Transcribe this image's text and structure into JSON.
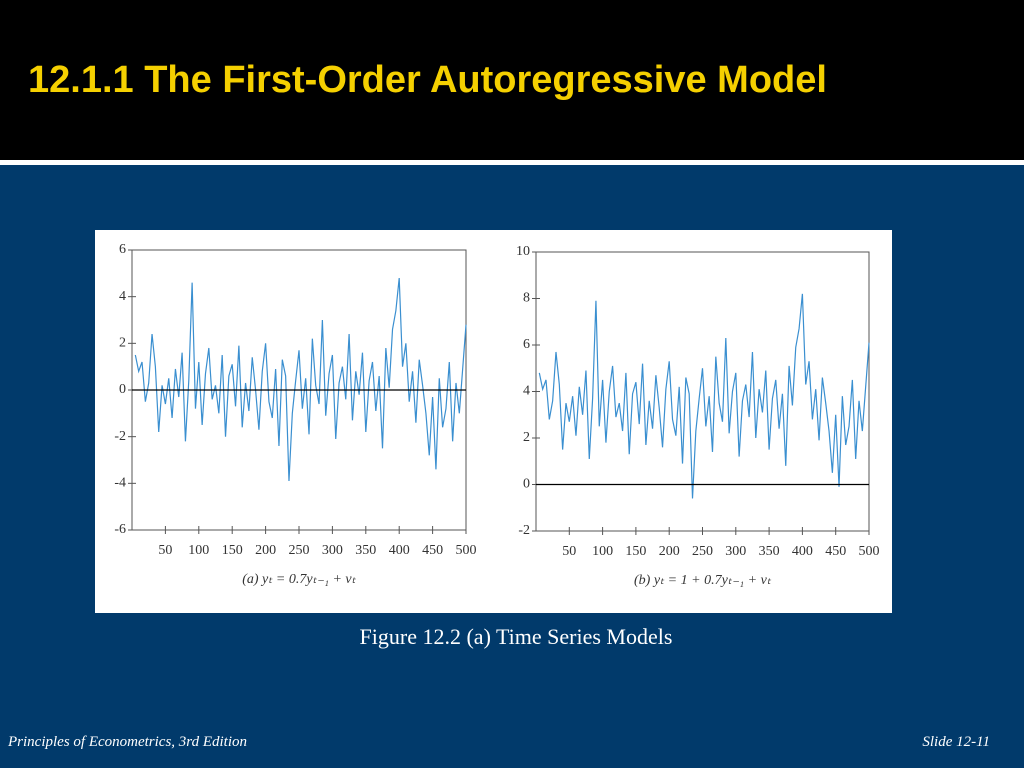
{
  "slide": {
    "title": "12.1.1 The First-Order Autoregressive Model",
    "caption": "Figure 12.2 (a) Time Series Models",
    "footer_left": "Principles of Econometrics, 3rd Edition",
    "footer_right": "Slide 12-11"
  },
  "chart_data": [
    {
      "type": "line",
      "xlabel": "(a) yₜ = 0.7yₜ₋₁ + vₜ",
      "color": "#3a8fd0",
      "reference_line": 0,
      "xlim": [
        0,
        500
      ],
      "xticks": [
        50,
        100,
        150,
        200,
        250,
        300,
        350,
        400,
        450,
        500
      ],
      "ylim": [
        -6,
        6
      ],
      "yticks": [
        -6,
        -4,
        -2,
        0,
        2,
        4,
        6
      ],
      "x": [
        5,
        10,
        15,
        20,
        25,
        30,
        35,
        40,
        45,
        50,
        55,
        60,
        65,
        70,
        75,
        80,
        85,
        90,
        95,
        100,
        105,
        110,
        115,
        120,
        125,
        130,
        135,
        140,
        145,
        150,
        155,
        160,
        165,
        170,
        175,
        180,
        185,
        190,
        195,
        200,
        205,
        210,
        215,
        220,
        225,
        230,
        235,
        240,
        245,
        250,
        255,
        260,
        265,
        270,
        275,
        280,
        285,
        290,
        295,
        300,
        305,
        310,
        315,
        320,
        325,
        330,
        335,
        340,
        345,
        350,
        355,
        360,
        365,
        370,
        375,
        380,
        385,
        390,
        395,
        400,
        405,
        410,
        415,
        420,
        425,
        430,
        435,
        440,
        445,
        450,
        455,
        460,
        465,
        470,
        475,
        480,
        485,
        490,
        495,
        500
      ],
      "values": [
        1.5,
        0.8,
        1.2,
        -0.5,
        0.3,
        2.4,
        1.0,
        -1.8,
        0.2,
        -0.6,
        0.5,
        -1.2,
        0.9,
        -0.3,
        1.6,
        -2.2,
        0.4,
        4.6,
        -0.8,
        1.2,
        -1.5,
        0.7,
        1.8,
        -0.4,
        0.2,
        -1.0,
        1.5,
        -2.0,
        0.6,
        1.1,
        -0.7,
        1.9,
        -1.6,
        0.3,
        -0.9,
        1.4,
        0.0,
        -1.7,
        0.8,
        2.0,
        -0.5,
        -1.2,
        0.9,
        -2.4,
        1.3,
        0.6,
        -3.9,
        -1.0,
        0.4,
        1.7,
        -0.8,
        0.5,
        -1.9,
        2.2,
        0.2,
        -0.6,
        3.0,
        -1.1,
        0.7,
        1.5,
        -2.1,
        0.3,
        1.0,
        -0.4,
        2.4,
        -1.3,
        0.8,
        -0.2,
        1.6,
        -1.8,
        0.4,
        1.2,
        -0.9,
        0.6,
        -2.5,
        1.8,
        0.1,
        2.6,
        3.4,
        4.8,
        1.0,
        2.0,
        -0.5,
        0.8,
        -1.4,
        1.3,
        0.2,
        -1.0,
        -2.8,
        -0.3,
        -3.4,
        0.5,
        -1.6,
        -0.8,
        1.2,
        -2.2,
        0.3,
        -1.0,
        0.9,
        2.8
      ]
    },
    {
      "type": "line",
      "xlabel": "(b) yₜ = 1 + 0.7yₜ₋₁ + vₜ",
      "color": "#3a8fd0",
      "reference_line": 0,
      "xlim": [
        0,
        500
      ],
      "xticks": [
        50,
        100,
        150,
        200,
        250,
        300,
        350,
        400,
        450,
        500
      ],
      "ylim": [
        -2,
        10
      ],
      "yticks": [
        -2,
        0,
        2,
        4,
        6,
        8,
        10
      ],
      "x": [
        5,
        10,
        15,
        20,
        25,
        30,
        35,
        40,
        45,
        50,
        55,
        60,
        65,
        70,
        75,
        80,
        85,
        90,
        95,
        100,
        105,
        110,
        115,
        120,
        125,
        130,
        135,
        140,
        145,
        150,
        155,
        160,
        165,
        170,
        175,
        180,
        185,
        190,
        195,
        200,
        205,
        210,
        215,
        220,
        225,
        230,
        235,
        240,
        245,
        250,
        255,
        260,
        265,
        270,
        275,
        280,
        285,
        290,
        295,
        300,
        305,
        310,
        315,
        320,
        325,
        330,
        335,
        340,
        345,
        350,
        355,
        360,
        365,
        370,
        375,
        380,
        385,
        390,
        395,
        400,
        405,
        410,
        415,
        420,
        425,
        430,
        435,
        440,
        445,
        450,
        455,
        460,
        465,
        470,
        475,
        480,
        485,
        490,
        495,
        500
      ],
      "values": [
        4.8,
        4.1,
        4.5,
        2.8,
        3.6,
        5.7,
        4.3,
        1.5,
        3.5,
        2.7,
        3.8,
        2.1,
        4.2,
        3.0,
        4.9,
        1.1,
        3.7,
        7.9,
        2.5,
        4.5,
        1.8,
        4.0,
        5.1,
        2.9,
        3.5,
        2.3,
        4.8,
        1.3,
        3.9,
        4.4,
        2.6,
        5.2,
        1.7,
        3.6,
        2.4,
        4.7,
        3.3,
        1.6,
        4.1,
        5.3,
        2.8,
        2.1,
        4.2,
        0.9,
        4.6,
        3.9,
        -0.6,
        2.3,
        3.7,
        5.0,
        2.5,
        3.8,
        1.4,
        5.5,
        3.5,
        2.7,
        6.3,
        2.2,
        4.0,
        4.8,
        1.2,
        3.6,
        4.3,
        2.9,
        5.7,
        2.0,
        4.1,
        3.1,
        4.9,
        1.5,
        3.7,
        4.5,
        2.4,
        3.9,
        0.8,
        5.1,
        3.4,
        5.9,
        6.7,
        8.2,
        4.3,
        5.3,
        2.8,
        4.1,
        1.9,
        4.6,
        3.5,
        2.3,
        0.5,
        3.0,
        -0.1,
        3.8,
        1.7,
        2.5,
        4.5,
        1.1,
        3.6,
        2.3,
        4.2,
        6.1
      ]
    }
  ]
}
